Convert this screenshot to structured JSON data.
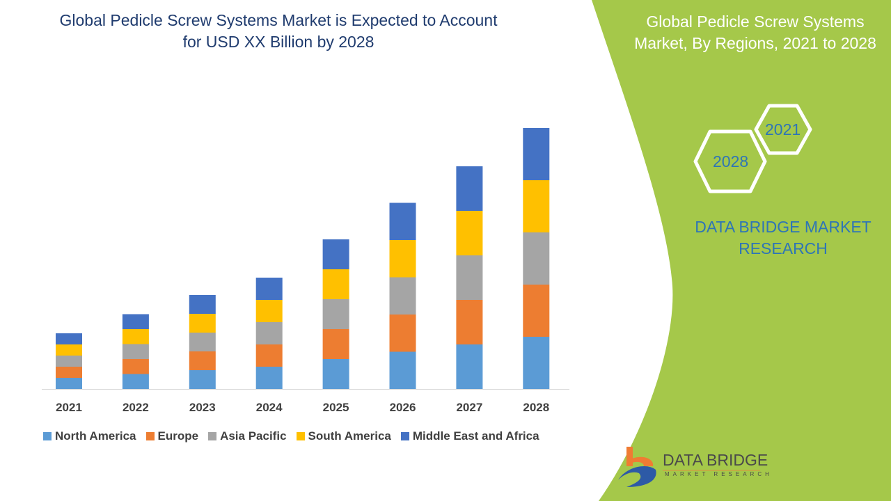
{
  "header": {
    "title_line1": "Global Pedicle Screw Systems Market is Expected to Account",
    "title_line2": "for USD XX Billion by 2028"
  },
  "side_panel": {
    "title_line1": "Global Pedicle Screw Systems",
    "title_line2": "Market, By Regions, 2021 to 2028",
    "hex_start_year": "2021",
    "hex_end_year": "2028",
    "brand_line1": "DATA BRIDGE MARKET",
    "brand_line2": "RESEARCH",
    "panel_color": "#a5c84a"
  },
  "logo": {
    "name": "DATA BRIDGE",
    "tagline": "MARKET RESEARCH"
  },
  "chart_data": {
    "type": "bar",
    "stacked": true,
    "title": "Global Pedicle Screw Systems Market is Expected to Account for USD XX Billion by 2028",
    "categories": [
      "2021",
      "2022",
      "2023",
      "2024",
      "2025",
      "2026",
      "2027",
      "2028"
    ],
    "legend_position": "bottom",
    "grid": false,
    "y_axis_visible": false,
    "series": [
      {
        "name": "North America",
        "color": "#5b9bd5",
        "values": [
          0.32,
          0.43,
          0.54,
          0.64,
          0.86,
          1.07,
          1.28,
          1.5
        ]
      },
      {
        "name": "Europe",
        "color": "#ed7d31",
        "values": [
          0.32,
          0.43,
          0.54,
          0.64,
          0.86,
          1.07,
          1.28,
          1.5
        ]
      },
      {
        "name": "Asia Pacific",
        "color": "#a5a5a5",
        "values": [
          0.32,
          0.43,
          0.54,
          0.64,
          0.86,
          1.07,
          1.28,
          1.5
        ]
      },
      {
        "name": "South America",
        "color": "#ffc000",
        "values": [
          0.32,
          0.43,
          0.54,
          0.64,
          0.86,
          1.07,
          1.28,
          1.5
        ]
      },
      {
        "name": "Middle East and Africa",
        "color": "#4472c4",
        "values": [
          0.32,
          0.43,
          0.54,
          0.64,
          0.86,
          1.07,
          1.28,
          1.5
        ]
      }
    ]
  }
}
